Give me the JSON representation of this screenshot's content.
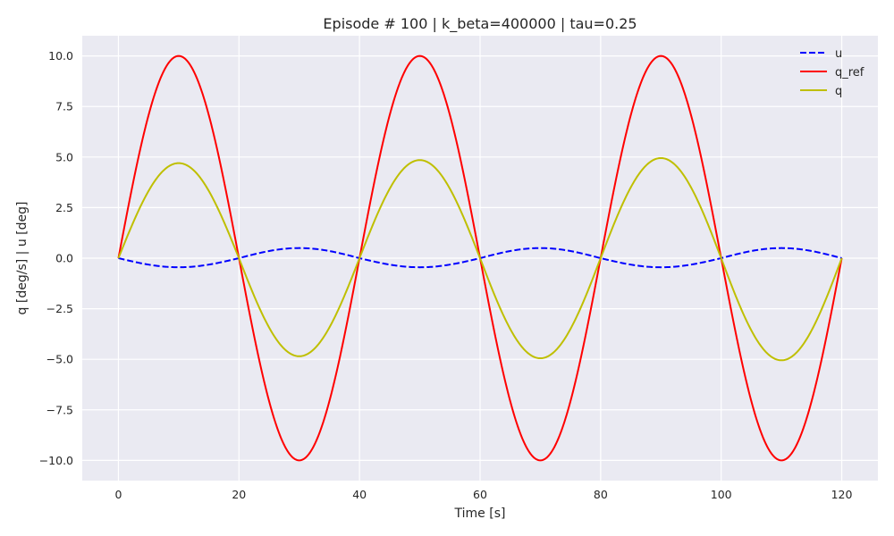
{
  "chart_data": {
    "type": "line",
    "title": "Episode # 100 | k_beta=400000 | tau=0.25",
    "xlabel": "Time [s]",
    "ylabel": "q [deg/s]  |  u [deg]",
    "xlim": [
      -6,
      126
    ],
    "ylim": [
      -11,
      11
    ],
    "xticks": [
      0,
      20,
      40,
      60,
      80,
      100,
      120
    ],
    "xtick_labels": [
      "0",
      "20",
      "40",
      "60",
      "80",
      "100",
      "120"
    ],
    "yticks": [
      -10,
      -7.5,
      -5,
      -2.5,
      0,
      2.5,
      5,
      7.5,
      10
    ],
    "ytick_labels": [
      "−10.0",
      "−7.5",
      "−5.0",
      "−2.5",
      "0.0",
      "2.5",
      "5.0",
      "7.5",
      "10.0"
    ],
    "grid": true,
    "legend_position": "top-right",
    "background_color": "#eaeaf2",
    "series": [
      {
        "name": "u",
        "color": "#0000ff",
        "dashed": true,
        "period": 40,
        "half_amplitudes": [
          -0.45,
          0.5,
          -0.45,
          0.5,
          -0.45,
          0.5
        ]
      },
      {
        "name": "q_ref",
        "color": "#ff0000",
        "dashed": false,
        "period": 40,
        "half_amplitudes": [
          10,
          -10,
          10,
          -10,
          10,
          -10
        ]
      },
      {
        "name": "q",
        "color": "#bfbf00",
        "dashed": false,
        "period": 40,
        "half_amplitudes": [
          4.7,
          -4.85,
          4.85,
          -4.95,
          4.95,
          -5.05
        ]
      }
    ]
  }
}
